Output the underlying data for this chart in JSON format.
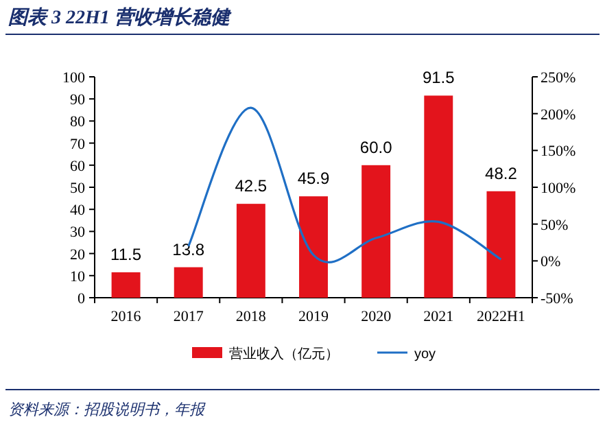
{
  "chart_data": {
    "type": "bar",
    "title": "图表 3  22H1 营收增长稳健",
    "categories": [
      "2016",
      "2017",
      "2018",
      "2019",
      "2020",
      "2021",
      "2022H1"
    ],
    "series": [
      {
        "name": "营业收入（亿元）",
        "color": "#e3141c",
        "values": [
          11.5,
          13.8,
          42.5,
          45.9,
          60.0,
          91.5,
          48.2
        ],
        "value_labels": [
          "11.5",
          "13.8",
          "42.5",
          "45.9",
          "60.0",
          "91.5",
          "48.2"
        ]
      },
      {
        "name": "yoy",
        "type": "line",
        "axis": "y2",
        "color": "#1f6fc5",
        "values": [
          null,
          20,
          208,
          8,
          31,
          53,
          2
        ]
      }
    ],
    "ylim": [
      0,
      100
    ],
    "yticks": [
      0,
      10,
      20,
      30,
      40,
      50,
      60,
      70,
      80,
      90,
      100
    ],
    "y2lim": [
      -50,
      250
    ],
    "y2ticks": [
      {
        "value": -50,
        "label": "-50%"
      },
      {
        "value": 0,
        "label": "0%"
      },
      {
        "value": 50,
        "label": "50%"
      },
      {
        "value": 100,
        "label": "100%"
      },
      {
        "value": 150,
        "label": "150%"
      },
      {
        "value": 200,
        "label": "200%"
      },
      {
        "value": 250,
        "label": "250%"
      }
    ],
    "grid": false,
    "legend": "bottom",
    "annotations": [
      "资料来源：招股说明书，年报"
    ]
  }
}
